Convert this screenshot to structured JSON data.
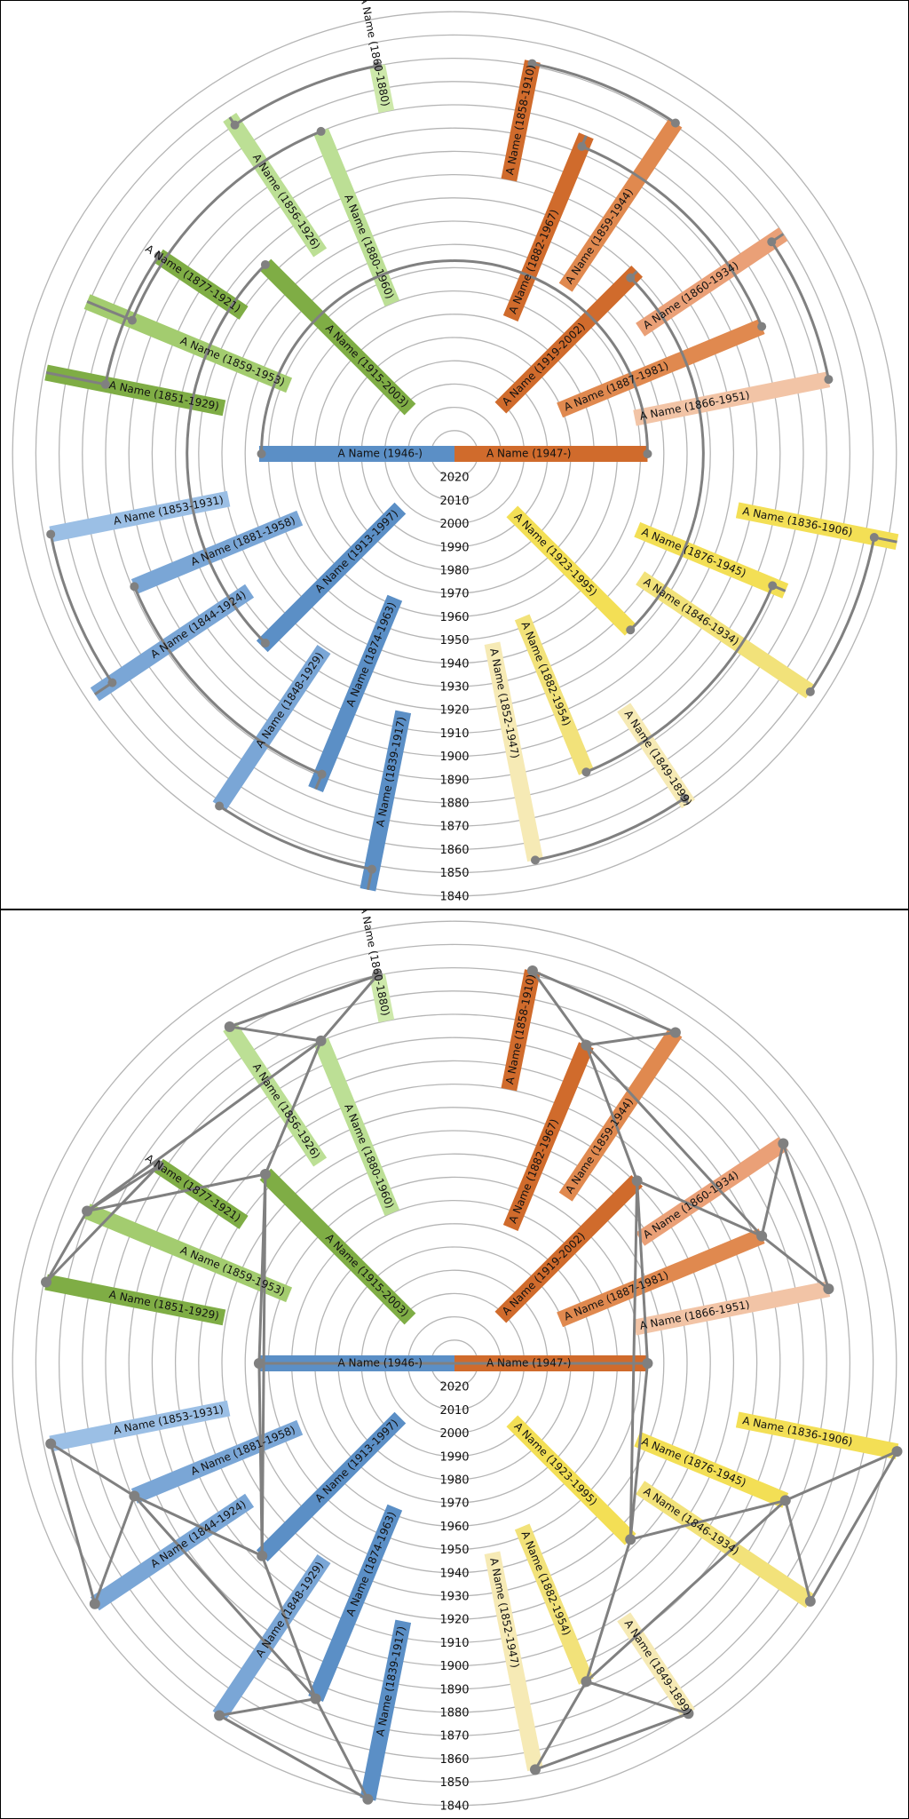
{
  "scale": {
    "center_year": 2030,
    "outer_year": 1840,
    "rings": [
      2020,
      2010,
      2000,
      1990,
      1980,
      1970,
      1960,
      1950,
      1940,
      1930,
      1920,
      1910,
      1900,
      1890,
      1880,
      1870,
      1860,
      1850,
      1840
    ]
  },
  "colors": {
    "orange": [
      "#d06b2c",
      "#e0894f",
      "#eaa077",
      "#f2c4a6"
    ],
    "green": [
      "#7fad45",
      "#a3cc6f",
      "#bcdf95",
      "#cde8aa"
    ],
    "blue": [
      "#5b8fc6",
      "#7aa6d6",
      "#9bbfe5"
    ],
    "yellow": [
      "#f3df55",
      "#f2e27a",
      "#f6eab5"
    ],
    "link": "#808080"
  },
  "people": [
    {
      "id": "p1946",
      "label": "A Name (1946-)",
      "birth": 1946,
      "death": 2030,
      "angle": 270,
      "color": "#5b8fc6"
    },
    {
      "id": "p1947",
      "label": "A Name (1947-)",
      "birth": 1947,
      "death": 2030,
      "angle": 90,
      "color": "#d06b2c"
    },
    {
      "id": "p1915",
      "label": "A Name (1915-2003)",
      "birth": 1915,
      "death": 2003,
      "angle": 315,
      "color": "#7fad45"
    },
    {
      "id": "p1919",
      "label": "A Name (1919-2002)",
      "birth": 1919,
      "death": 2002,
      "angle": 45,
      "color": "#d06b2c"
    },
    {
      "id": "p1913",
      "label": "A Name (1913-1997)",
      "birth": 1913,
      "death": 1997,
      "angle": 225,
      "color": "#5b8fc6"
    },
    {
      "id": "p1923",
      "label": "A Name (1923-1995)",
      "birth": 1923,
      "death": 1995,
      "angle": 135,
      "color": "#f3df55"
    },
    {
      "id": "p1880",
      "label": "A Name (1880-1960)",
      "birth": 1880,
      "death": 1960,
      "angle": 337.5,
      "color": "#bcdf95"
    },
    {
      "id": "p1859",
      "label": "A Name (1859-1953)",
      "birth": 1859,
      "death": 1953,
      "angle": 292.5,
      "color": "#a3cc6f"
    },
    {
      "id": "p1882",
      "label": "A Name (1882-1967)",
      "birth": 1882,
      "death": 1967,
      "angle": 22.5,
      "color": "#d06b2c"
    },
    {
      "id": "p1887",
      "label": "A Name (1887-1981)",
      "birth": 1887,
      "death": 1981,
      "angle": 67.5,
      "color": "#e0894f"
    },
    {
      "id": "p1881",
      "label": "A Name (1881-1958)",
      "birth": 1881,
      "death": 1958,
      "angle": 247.5,
      "color": "#7aa6d6"
    },
    {
      "id": "p1874",
      "label": "A Name (1874-1963)",
      "birth": 1874,
      "death": 1963,
      "angle": 202.5,
      "color": "#5b8fc6"
    },
    {
      "id": "p1876",
      "label": "A Name (1876-1945)",
      "birth": 1876,
      "death": 1945,
      "angle": 112.5,
      "color": "#f3df55"
    },
    {
      "id": "p1882b",
      "label": "A Name (1882-1954)",
      "birth": 1882,
      "death": 1954,
      "angle": 157.5,
      "color": "#f2e27a"
    },
    {
      "id": "p1860a",
      "label": "A Name (1860-1880)",
      "birth": 1860,
      "death": 1880,
      "angle": 348.75,
      "color": "#cde8aa"
    },
    {
      "id": "p1856",
      "label": "A Name (1856-1926)",
      "birth": 1856,
      "death": 1926,
      "angle": 326.25,
      "color": "#bcdf95"
    },
    {
      "id": "p1877",
      "label": "A Name (1877-1921)",
      "birth": 1877,
      "death": 1921,
      "angle": 303.75,
      "color": "#7fad45"
    },
    {
      "id": "p1851",
      "label": "A Name (1851-1929)",
      "birth": 1851,
      "death": 1929,
      "angle": 281.25,
      "color": "#7fad45"
    },
    {
      "id": "p1858",
      "label": "A Name (1858-1910)",
      "birth": 1858,
      "death": 1910,
      "angle": 11.25,
      "color": "#d06b2c"
    },
    {
      "id": "p1859b",
      "label": "A Name (1859-1944)",
      "birth": 1859,
      "death": 1944,
      "angle": 33.75,
      "color": "#e0894f"
    },
    {
      "id": "p1860b",
      "label": "A Name (1860-1934)",
      "birth": 1860,
      "death": 1934,
      "angle": 56.25,
      "color": "#eaa077"
    },
    {
      "id": "p1866",
      "label": "A Name (1866-1951)",
      "birth": 1866,
      "death": 1951,
      "angle": 78.75,
      "color": "#f2c4a6"
    },
    {
      "id": "p1853",
      "label": "A Name (1853-1931)",
      "birth": 1853,
      "death": 1931,
      "angle": 258.75,
      "color": "#9bbfe5"
    },
    {
      "id": "p1844",
      "label": "A Name (1844-1924)",
      "birth": 1844,
      "death": 1924,
      "angle": 236.25,
      "color": "#7aa6d6"
    },
    {
      "id": "p1848",
      "label": "A Name (1848-1929)",
      "birth": 1848,
      "death": 1929,
      "angle": 213.75,
      "color": "#7aa6d6"
    },
    {
      "id": "p1839",
      "label": "A Name (1839-1917)",
      "birth": 1839,
      "death": 1917,
      "angle": 191.25,
      "color": "#5b8fc6"
    },
    {
      "id": "p1836",
      "label": "A Name (1836-1906)",
      "birth": 1836,
      "death": 1906,
      "angle": 101.25,
      "color": "#f3df55"
    },
    {
      "id": "p1846",
      "label": "A Name (1846-1934)",
      "birth": 1846,
      "death": 1934,
      "angle": 123.75,
      "color": "#f2e27a"
    },
    {
      "id": "p1852",
      "label": "A Name (1852-1947)",
      "birth": 1852,
      "death": 1947,
      "angle": 168.75,
      "color": "#f6eab5"
    },
    {
      "id": "p1849",
      "label": "A Name (1849-1899)",
      "birth": 1849,
      "death": 1899,
      "angle": 146.25,
      "color": "#f6eab5"
    }
  ],
  "families": [
    {
      "parents": [
        "p1946",
        "p1947"
      ],
      "children": []
    },
    {
      "parents": [
        "p1915",
        "p1913"
      ],
      "children": [
        "p1946"
      ]
    },
    {
      "parents": [
        "p1919",
        "p1923"
      ],
      "children": [
        "p1947"
      ]
    },
    {
      "parents": [
        "p1880",
        "p1859"
      ],
      "children": [
        "p1915"
      ]
    },
    {
      "parents": [
        "p1881",
        "p1874"
      ],
      "children": [
        "p1913"
      ]
    },
    {
      "parents": [
        "p1882",
        "p1887"
      ],
      "children": [
        "p1919"
      ]
    },
    {
      "parents": [
        "p1876",
        "p1882b"
      ],
      "children": [
        "p1923"
      ]
    },
    {
      "parents": [
        "p1860a",
        "p1856"
      ],
      "children": [
        "p1880"
      ]
    },
    {
      "parents": [
        "p1877",
        "p1851"
      ],
      "children": [
        "p1859"
      ]
    },
    {
      "parents": [
        "p1858",
        "p1859b"
      ],
      "children": [
        "p1882"
      ]
    },
    {
      "parents": [
        "p1860b",
        "p1866"
      ],
      "children": [
        "p1887"
      ]
    },
    {
      "parents": [
        "p1853",
        "p1844"
      ],
      "children": [
        "p1881"
      ]
    },
    {
      "parents": [
        "p1848",
        "p1839"
      ],
      "children": [
        "p1874"
      ]
    },
    {
      "parents": [
        "p1836",
        "p1846"
      ],
      "children": [
        "p1876"
      ]
    },
    {
      "parents": [
        "p1852",
        "p1849"
      ],
      "children": [
        "p1882b"
      ]
    }
  ]
}
